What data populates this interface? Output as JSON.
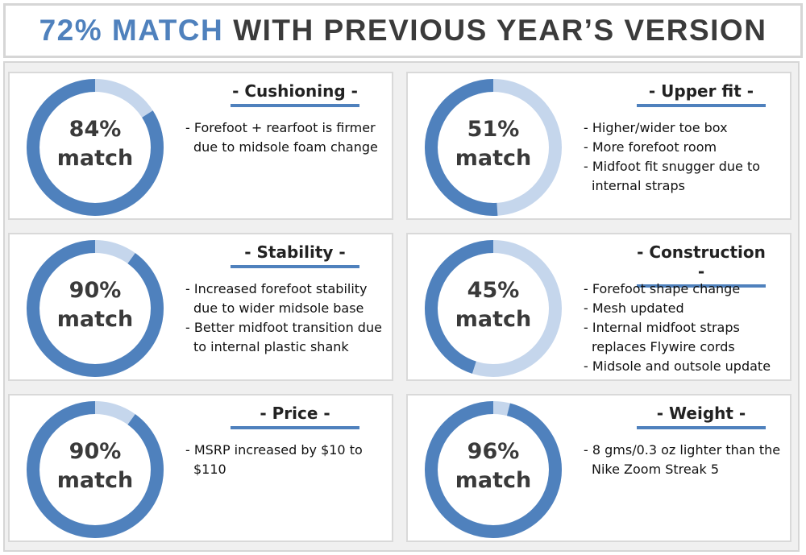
{
  "header": {
    "highlight": "72% MATCH",
    "title": "WITH PREVIOUS YEAR’S VERSION"
  },
  "colors": {
    "match": "#4f81bd",
    "remainder": "#c5d6ec",
    "text": "#3b3b3b"
  },
  "match_word": "match",
  "chart_data": [
    {
      "type": "pie",
      "label": "Cushioning",
      "value": 84,
      "value_label": "84%",
      "notes": [
        "- Forefoot + rearfoot is firmer due to midsole foam change"
      ]
    },
    {
      "type": "pie",
      "label": "Upper fit",
      "value": 51,
      "value_label": "51%",
      "notes": [
        "- Higher/wider toe box",
        "- More forefoot room",
        "- Midfoot fit snugger due to internal straps"
      ]
    },
    {
      "type": "pie",
      "label": "Stability",
      "value": 90,
      "value_label": "90%",
      "notes": [
        "- Increased forefoot stability due to wider midsole base",
        "- Better midfoot transition due to internal plastic shank"
      ]
    },
    {
      "type": "pie",
      "label": "Construction",
      "value": 45,
      "value_label": "45%",
      "notes": [
        "- Forefoot shape change",
        "- Mesh updated",
        "- Internal midfoot straps replaces Flywire cords",
        "- Midsole and outsole update"
      ]
    },
    {
      "type": "pie",
      "label": "Price",
      "value": 90,
      "value_label": "90%",
      "notes": [
        "- MSRP increased by $10 to $110"
      ]
    },
    {
      "type": "pie",
      "label": "Weight",
      "value": 96,
      "value_label": "96%",
      "notes": [
        "- 8 gms/0.3 oz lighter than the Nike Zoom Streak 5"
      ]
    }
  ]
}
